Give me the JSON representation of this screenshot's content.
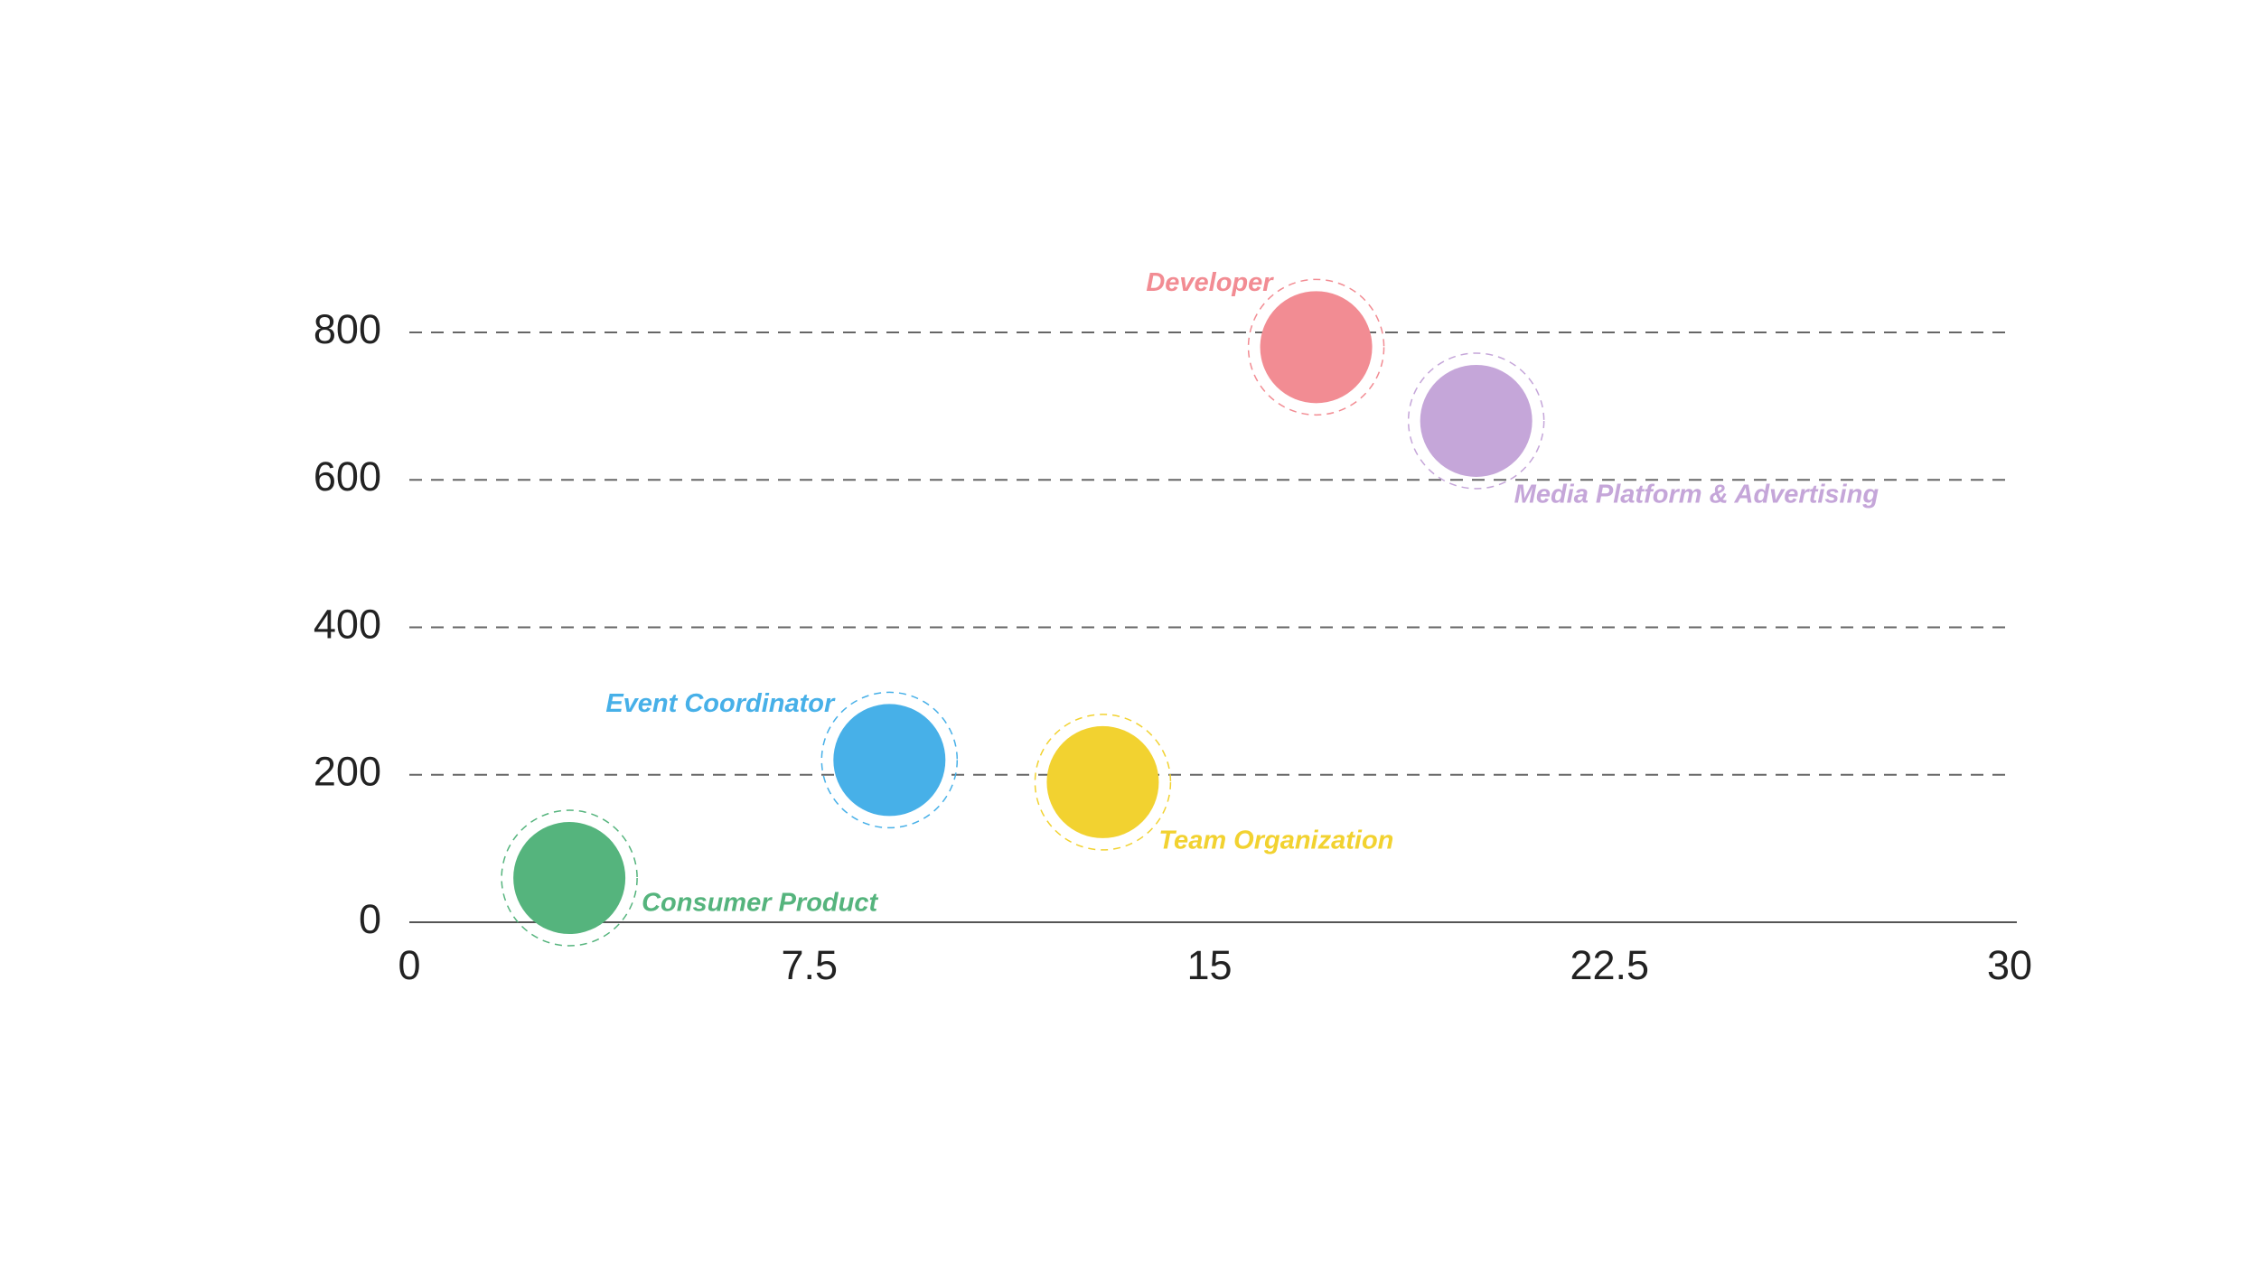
{
  "chart_data": {
    "type": "scatter",
    "series": [
      {
        "name": "Consumer Product",
        "color": "#55b47d",
        "x": [
          3
        ],
        "values": [
          60
        ]
      },
      {
        "name": "Event Coordinator",
        "color": "#47b0e8",
        "x": [
          9
        ],
        "values": [
          220
        ]
      },
      {
        "name": "Team Organization",
        "color": "#f2d230",
        "x": [
          13
        ],
        "values": [
          190
        ]
      },
      {
        "name": "Developer",
        "color": "#f28c93",
        "x": [
          17
        ],
        "values": [
          780
        ]
      },
      {
        "name": "Media Platform & Advertising",
        "color": "#c5a6d9",
        "x": [
          20
        ],
        "values": [
          680
        ]
      }
    ],
    "xlim": [
      0,
      30
    ],
    "xticks": [
      0,
      7.5,
      15,
      22.5,
      30
    ],
    "ylim": [
      0,
      800
    ],
    "yticks": [
      0,
      200,
      400,
      600,
      800
    ],
    "grid": true
  }
}
